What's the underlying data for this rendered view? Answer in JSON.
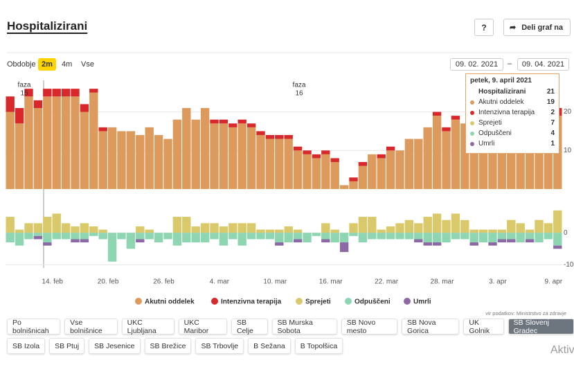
{
  "page": {
    "title": "Hospitalizirani",
    "help": "?",
    "share": "Deli graf na",
    "period_label": "Obdobje",
    "period_options": [
      "2m",
      "4m",
      "Vse"
    ],
    "period_selected": 0,
    "date_from": "09. 02. 2021",
    "date_separator": "–",
    "date_to": "09. 04. 2021",
    "source": "vir podatkov: Ministrstvo za zdravje",
    "watermark": "Aktivira"
  },
  "tooltip": {
    "title": "petek, 9. april 2021",
    "rows": [
      [
        "Hospitalizirani",
        21
      ],
      [
        "Akutni oddelek",
        19
      ],
      [
        "Intenzivna terapija",
        2
      ],
      [
        "Sprejeti",
        7
      ],
      [
        "Odpuščeni",
        4
      ],
      [
        "Umrli",
        1
      ]
    ]
  },
  "buttons": [
    [
      "Po bolnišnicah",
      "Vse bolnišnice",
      "UKC Ljubljana",
      "UKC Maribor",
      "SB Celje",
      "SB Murska Sobota",
      "SB Novo mesto",
      "SB Nova Gorica",
      "UK Golnik",
      "SB Slovenj Gradec"
    ],
    [
      "SB Izola",
      "SB Ptuj",
      "SB Jesenice",
      "SB Brežice",
      "SB Trbovlje",
      "B Sežana",
      "B Topolšica"
    ]
  ],
  "selected_button": [
    0,
    9
  ],
  "chart_data": [
    {
      "type": "bar",
      "stacked": true,
      "ylim": [
        0,
        28
      ],
      "yticks": [
        10,
        20
      ],
      "grid": true,
      "annotations": [
        [
          "faza",
          "15"
        ],
        [
          "faza",
          "16"
        ]
      ],
      "series": [
        {
          "name": "Akutni oddelek",
          "color": "#dc9a5c",
          "values": [
            20,
            17,
            24,
            21,
            24,
            24,
            24,
            24,
            20,
            25,
            15,
            16,
            15,
            15,
            14,
            16,
            14,
            13,
            18,
            21,
            18,
            21,
            17,
            17,
            16,
            17,
            16,
            14,
            13,
            13,
            13,
            10,
            9,
            8,
            9,
            7,
            1,
            2,
            6,
            9,
            8,
            10,
            10,
            13,
            13,
            16,
            19,
            15,
            18,
            17,
            19,
            18,
            18,
            19,
            19,
            17,
            19,
            17,
            19,
            19
          ]
        },
        {
          "name": "Intenzivna terapija",
          "color": "#d9282b",
          "values": [
            4,
            4,
            2,
            2,
            2,
            2,
            2,
            2,
            2,
            1,
            1,
            0,
            0,
            0,
            0,
            0,
            0,
            0,
            0,
            0,
            0,
            0,
            1,
            1,
            1,
            1,
            1,
            1,
            1,
            1,
            1,
            1,
            1,
            1,
            1,
            1,
            0,
            1,
            1,
            0,
            1,
            1,
            0,
            0,
            0,
            0,
            1,
            1,
            1,
            0,
            0,
            0,
            1,
            1,
            0,
            1,
            1,
            2,
            1,
            2
          ]
        }
      ]
    },
    {
      "type": "bar",
      "stacked": true,
      "ylim": [
        -11,
        10
      ],
      "yticks": [
        -10,
        0
      ],
      "grid": true,
      "categories": [
        null,
        null,
        null,
        null,
        null,
        "14. feb",
        null,
        null,
        null,
        null,
        null,
        "20. feb",
        null,
        null,
        null,
        null,
        null,
        "26. feb",
        null,
        null,
        null,
        null,
        null,
        "4. mar",
        null,
        null,
        null,
        null,
        null,
        "10. mar",
        null,
        null,
        null,
        null,
        null,
        "16. mar",
        null,
        null,
        null,
        null,
        null,
        "22. mar",
        null,
        null,
        null,
        null,
        null,
        "28. mar",
        null,
        null,
        null,
        null,
        null,
        "3. apr",
        null,
        null,
        null,
        null,
        null,
        "9. apr"
      ],
      "series": [
        {
          "name": "Sprejeti",
          "color": "#d9c96a",
          "values": [
            5,
            1,
            3,
            3,
            5,
            6,
            3,
            2,
            3,
            2,
            1,
            0,
            0,
            0,
            2,
            1,
            0,
            0,
            5,
            5,
            2,
            3,
            3,
            2,
            3,
            3,
            3,
            1,
            1,
            1,
            2,
            1,
            0,
            0,
            3,
            1,
            0,
            3,
            5,
            5,
            1,
            2,
            3,
            4,
            3,
            5,
            6,
            4,
            6,
            4,
            1,
            1,
            1,
            1,
            4,
            3,
            1,
            4,
            3,
            7
          ]
        },
        {
          "name": "Odpuščeni",
          "color": "#8dd6b1",
          "values": [
            -3,
            -4,
            -2,
            -1,
            -3,
            -2,
            -2,
            -2,
            -2,
            -1,
            -2,
            -9,
            -2,
            -5,
            -2,
            -2,
            -3,
            -2,
            -4,
            -3,
            -3,
            -3,
            -2,
            -4,
            -2,
            -4,
            -2,
            -2,
            -2,
            -3,
            -3,
            -2,
            -3,
            -1,
            -2,
            -3,
            -3,
            -1,
            -3,
            -2,
            -2,
            -2,
            -2,
            -2,
            -2,
            -3,
            -3,
            -3,
            -2,
            -2,
            -3,
            -3,
            -3,
            -2,
            -2,
            -3,
            -2,
            -3,
            -2,
            -4
          ]
        },
        {
          "name": "Umrli",
          "color": "#8c68a4",
          "values": [
            0,
            0,
            0,
            -1,
            -1,
            0,
            0,
            -1,
            -1,
            0,
            0,
            0,
            0,
            0,
            -1,
            0,
            0,
            0,
            0,
            0,
            0,
            0,
            0,
            0,
            0,
            0,
            0,
            0,
            0,
            -1,
            0,
            -1,
            0,
            0,
            -1,
            0,
            -3,
            0,
            0,
            0,
            0,
            0,
            0,
            0,
            -1,
            -1,
            -1,
            0,
            0,
            0,
            -1,
            0,
            -1,
            -1,
            -1,
            0,
            -1,
            0,
            0,
            -1
          ]
        }
      ]
    }
  ]
}
